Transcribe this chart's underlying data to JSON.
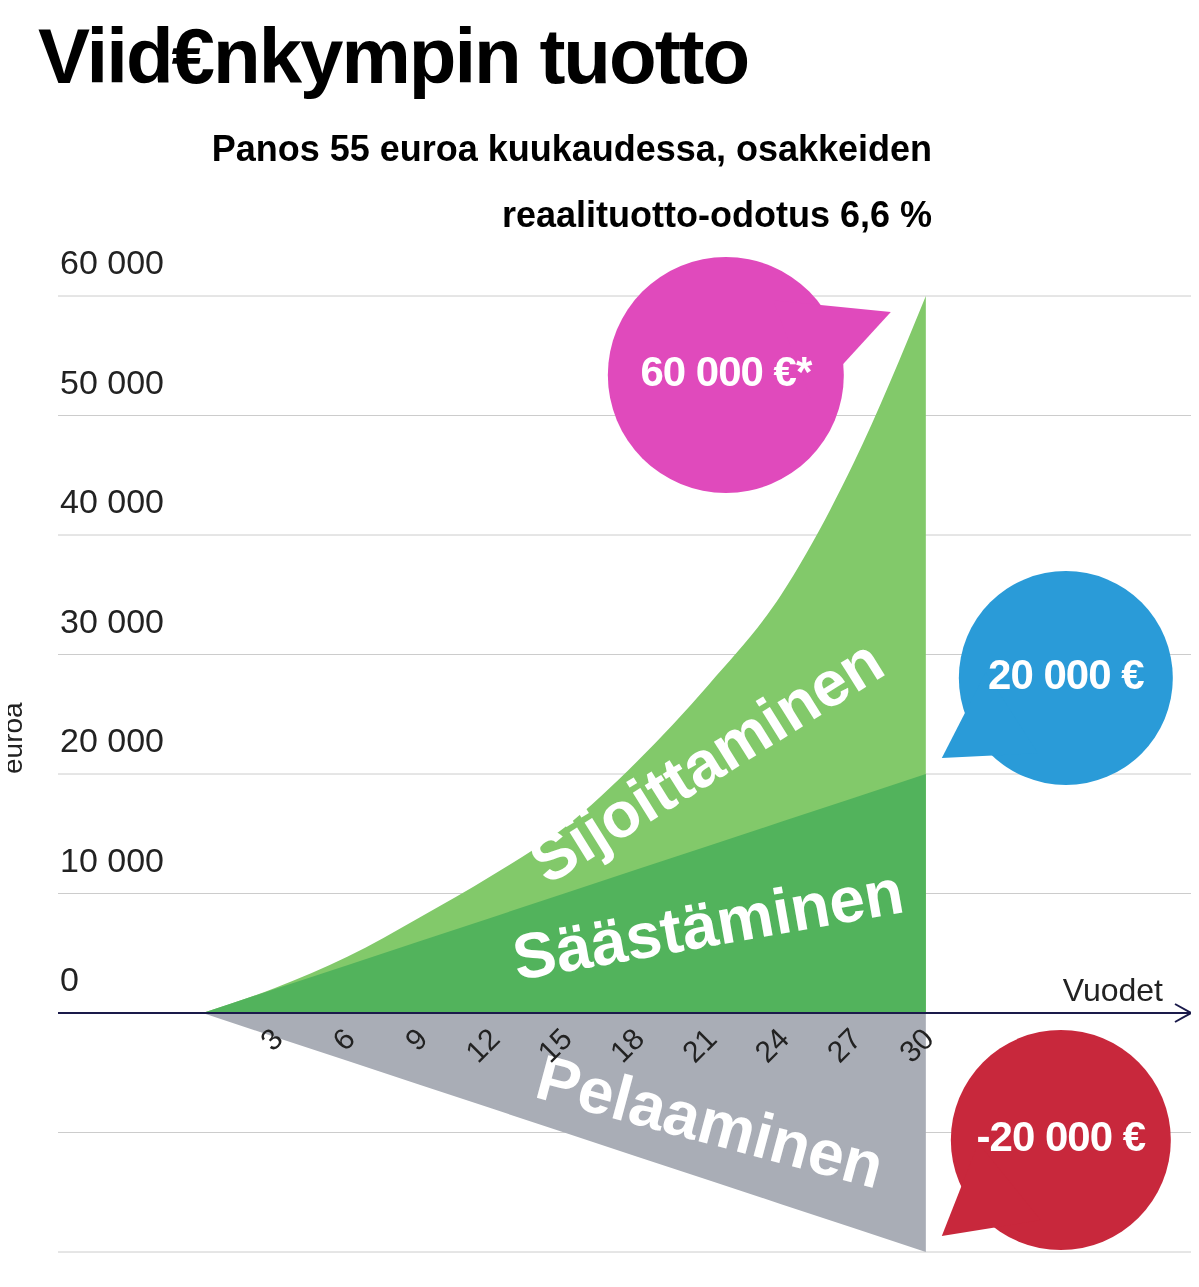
{
  "chart_data": {
    "type": "area",
    "title": "Viid€nkympin tuotto",
    "subtitle": "Panos 55 euroa kuukaudessa, osakkeiden reaalituotto-odotus 6,6 %",
    "xlabel": "Vuodet",
    "ylabel": "euroa",
    "x": [
      0,
      3,
      6,
      9,
      12,
      15,
      18,
      21,
      24,
      27,
      30
    ],
    "series": [
      {
        "name": "Sijoittaminen",
        "color": "#82c96a",
        "values": [
          0,
          2100,
          4700,
          8000,
          11500,
          15500,
          21000,
          27500,
          35000,
          46000,
          60000
        ]
      },
      {
        "name": "Säästäminen",
        "color": "#52b35c",
        "values": [
          0,
          2000,
          4000,
          6000,
          8000,
          10000,
          12000,
          14000,
          16000,
          18000,
          20000
        ]
      },
      {
        "name": "Pelaaminen",
        "color": "#a9adb6",
        "values": [
          0,
          -2000,
          -4000,
          -6000,
          -8000,
          -10000,
          -12000,
          -14000,
          -16000,
          -18000,
          -20000
        ]
      }
    ],
    "xlim": [
      -6,
      41
    ],
    "xticks": [
      3,
      6,
      9,
      12,
      15,
      18,
      21,
      24,
      27,
      30
    ],
    "ylim": [
      -20000,
      60000
    ],
    "yticks": [
      {
        "value": -20000,
        "label": null
      },
      {
        "value": -10000,
        "label": null
      },
      0,
      {
        "value": 10000,
        "label": "10 000"
      },
      {
        "value": 20000,
        "label": "20 000"
      },
      {
        "value": 30000,
        "label": "30 000"
      },
      {
        "value": 40000,
        "label": "40 000"
      },
      {
        "value": 50000,
        "label": "50 000"
      },
      {
        "value": 60000,
        "label": "60 000"
      }
    ],
    "annotations": [
      "60 000 €*",
      "20 000 €",
      "-20 000 €"
    ],
    "grid": "y",
    "legend": false,
    "marker": "none"
  }
}
